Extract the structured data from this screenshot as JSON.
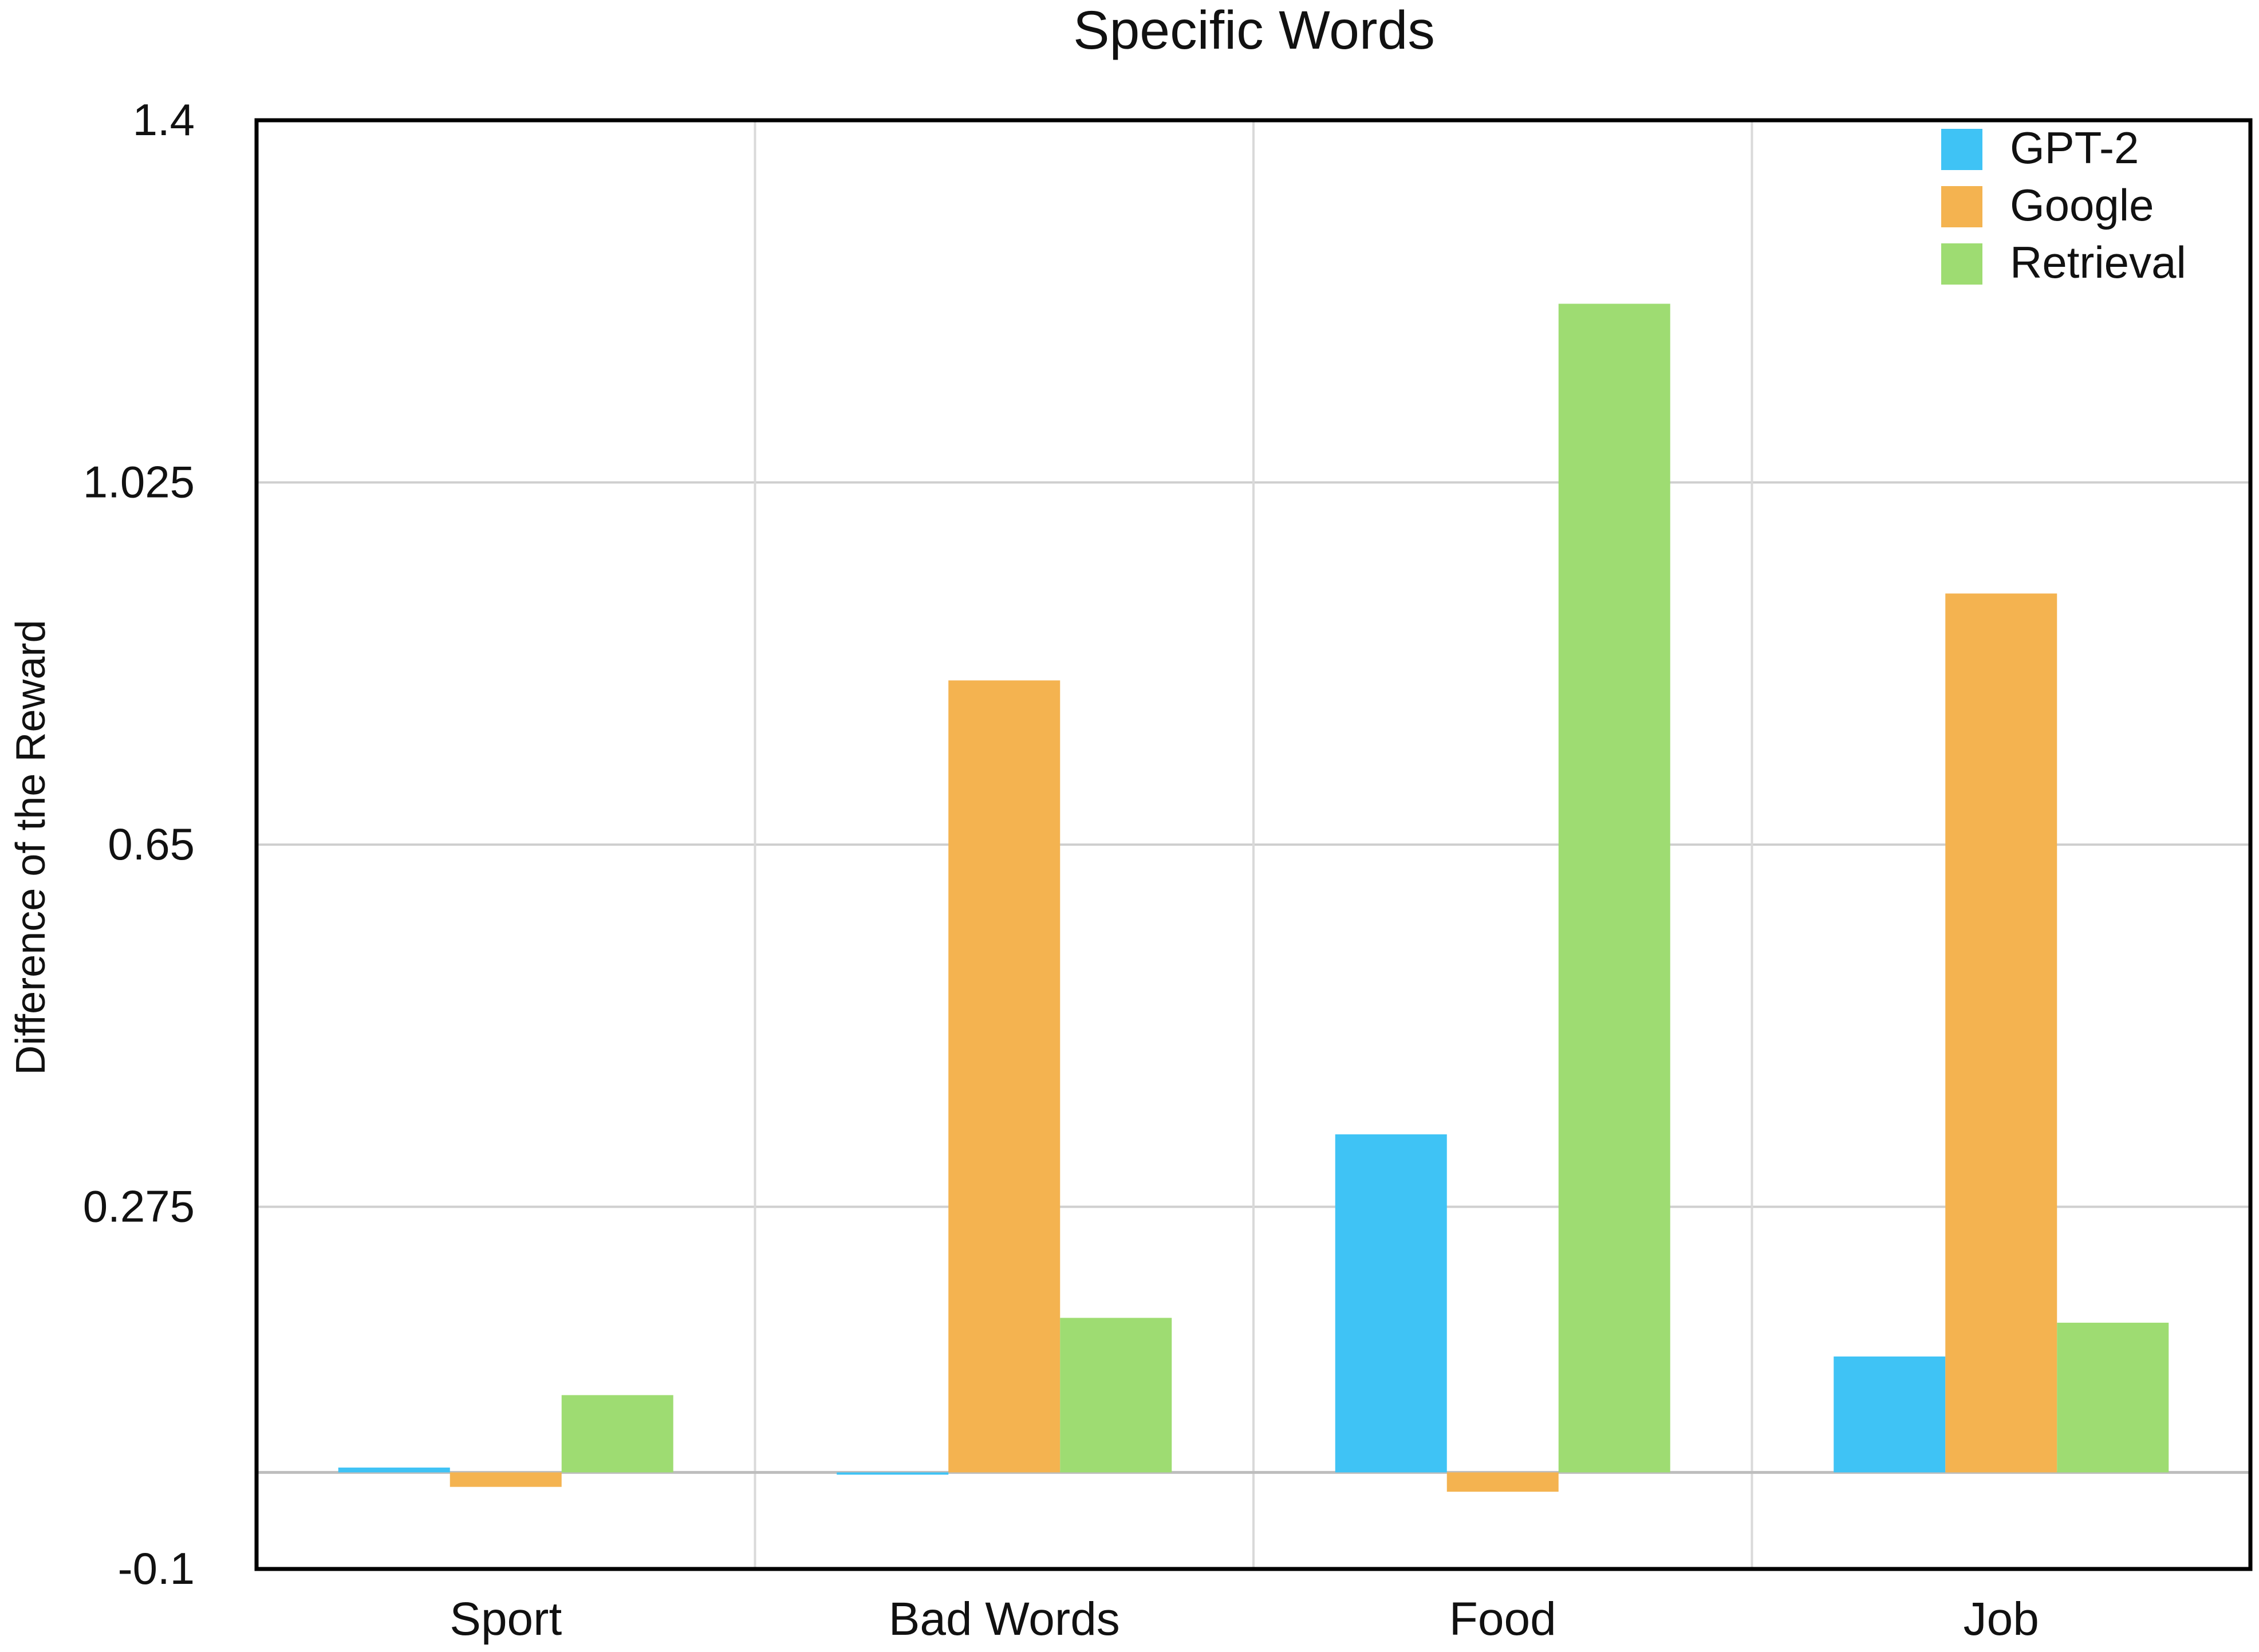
{
  "chart_data": {
    "type": "bar",
    "title": "Specific Words",
    "xlabel": "",
    "ylabel": "Difference of the Reward",
    "categories": [
      "Sport",
      "Bad Words",
      "Food",
      "Job"
    ],
    "series": [
      {
        "name": "GPT-2",
        "color": "#3fc3f5",
        "values": [
          0.005,
          0.0,
          0.35,
          0.12
        ]
      },
      {
        "name": "Google",
        "color": "#f4b350",
        "values": [
          -0.015,
          0.82,
          -0.02,
          0.91
        ]
      },
      {
        "name": "Retrieval",
        "color": "#9edc72",
        "values": [
          0.08,
          0.16,
          1.21,
          0.155
        ]
      }
    ],
    "yticks": [
      "1.4",
      "1.025",
      "0.65",
      "0.275",
      "-0.1"
    ],
    "ytick_values": [
      1.4,
      1.025,
      0.65,
      0.275,
      -0.1
    ],
    "ylim": [
      -0.1,
      1.4
    ],
    "grid": true,
    "legend_position": "top-right"
  }
}
